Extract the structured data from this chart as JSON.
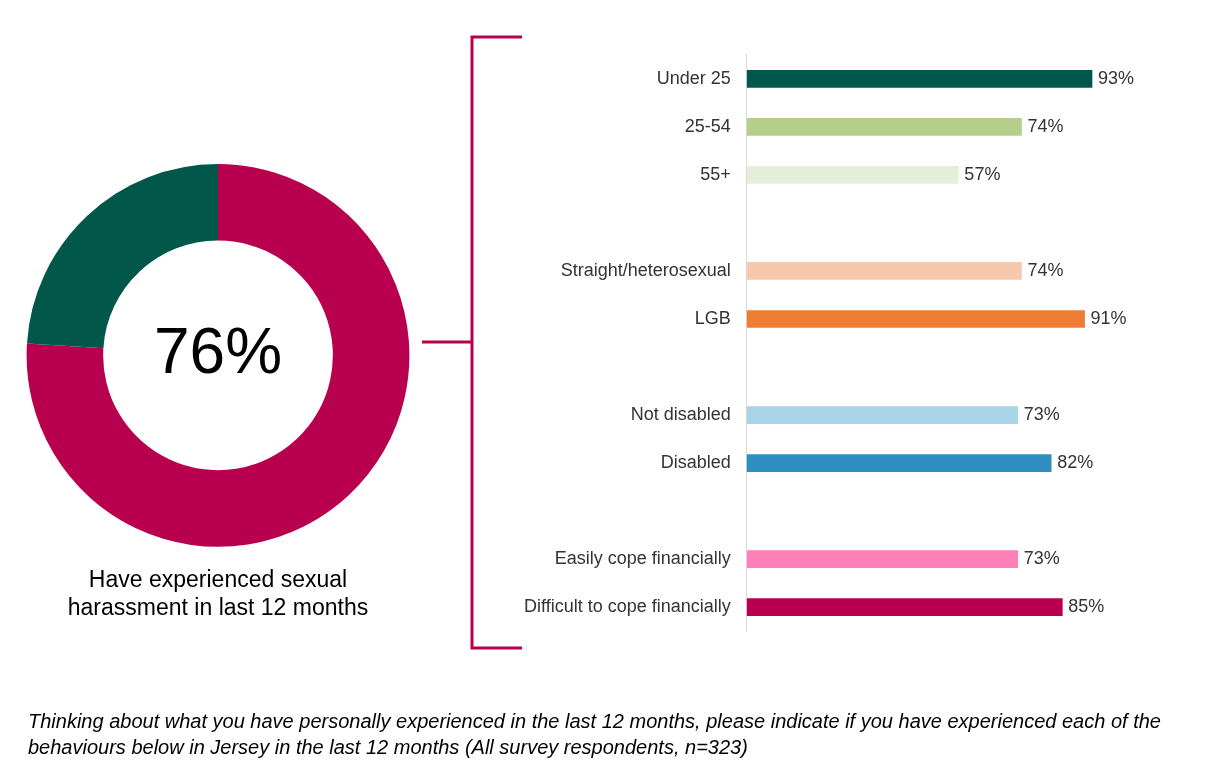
{
  "chart_data": [
    {
      "type": "donut",
      "title": "Have experienced sexual harassment in last 12 months",
      "categories": [
        null,
        null
      ],
      "values": [
        76,
        24
      ],
      "colors": [
        "#b8004f",
        "#00574a"
      ],
      "value_labels": [
        "76%",
        null
      ]
    },
    {
      "type": "bar",
      "orientation": "horizontal",
      "categories": [
        "Under 25",
        "25-54",
        "55+",
        null,
        "Straight/heterosexual",
        "LGB",
        null,
        "Not disabled",
        "Disabled",
        null,
        "Easily cope financially",
        "Difficult to cope financially"
      ],
      "values": [
        93,
        74,
        57,
        null,
        74,
        91,
        null,
        73,
        82,
        null,
        73,
        85
      ],
      "colors": [
        "#00574a",
        "#b3cf8a",
        "#e3efd9",
        "#ffffff",
        "#f7c8ab",
        "#ee7d33",
        "#ffffff",
        "#a9d3e9",
        "#2e8fc0",
        "#ffffff",
        "#ff80b8",
        "#b8004f"
      ],
      "value_labels": [
        "93%",
        "74%",
        "57%",
        null,
        "74%",
        "91%",
        null,
        "73%",
        "82%",
        null,
        "73%",
        "85%"
      ],
      "annotations": [
        "Thinking about what you have personally experienced in the last 12 months, please indicate if you have experienced each of the behaviours below in Jersey in the last 12 months (All survey respondents, n=323)"
      ]
    }
  ]
}
